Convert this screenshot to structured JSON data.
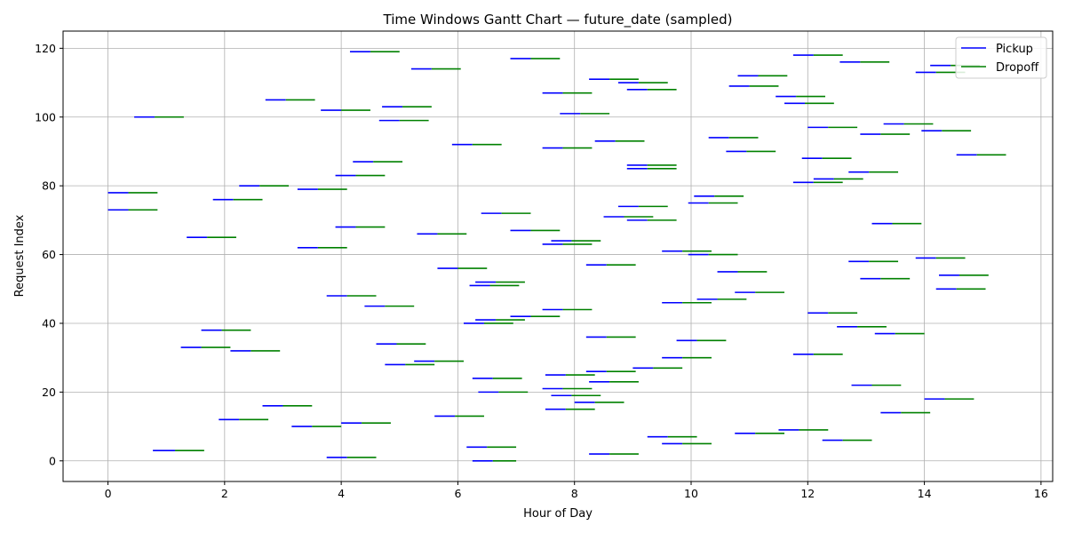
{
  "chart_data": {
    "type": "gantt",
    "title": "Time Windows Gantt Chart — future_date (sampled)",
    "xlabel": "Hour of Day",
    "ylabel": "Request Index",
    "xlim": [
      -0.77,
      16.2
    ],
    "ylim": [
      -6,
      125
    ],
    "x_ticks": [
      0,
      2,
      4,
      6,
      8,
      10,
      12,
      14,
      16
    ],
    "y_ticks": [
      0,
      20,
      40,
      60,
      80,
      100,
      120
    ],
    "grid": true,
    "legend_position": "top-right",
    "series": [
      {
        "name": "Pickup",
        "color": "#0000ff"
      },
      {
        "name": "Dropoff",
        "color": "#008000"
      }
    ],
    "requests": [
      [
        0,
        6.25,
        6.6,
        7.0
      ],
      [
        1,
        3.75,
        4.1,
        4.6
      ],
      [
        2,
        8.25,
        8.6,
        9.1
      ],
      [
        3,
        0.77,
        1.15,
        1.65
      ],
      [
        4,
        6.15,
        6.5,
        7.0
      ],
      [
        5,
        9.5,
        9.85,
        10.35
      ],
      [
        6,
        12.25,
        12.6,
        13.1
      ],
      [
        7,
        9.25,
        9.6,
        10.1
      ],
      [
        8,
        10.75,
        11.1,
        11.6
      ],
      [
        9,
        11.5,
        11.85,
        12.35
      ],
      [
        10,
        3.15,
        3.5,
        4.0
      ],
      [
        11,
        4.0,
        4.35,
        4.85
      ],
      [
        12,
        1.9,
        2.25,
        2.75
      ],
      [
        13,
        5.6,
        5.95,
        6.45
      ],
      [
        14,
        13.25,
        13.6,
        14.1
      ],
      [
        15,
        7.5,
        7.85,
        8.35
      ],
      [
        16,
        2.65,
        3.0,
        3.5
      ],
      [
        17,
        8.0,
        8.35,
        8.85
      ],
      [
        18,
        14.0,
        14.35,
        14.85
      ],
      [
        19,
        7.6,
        7.95,
        8.45
      ],
      [
        20,
        6.35,
        6.7,
        7.2
      ],
      [
        21,
        7.45,
        7.8,
        8.3
      ],
      [
        22,
        12.75,
        13.1,
        13.6
      ],
      [
        23,
        8.25,
        8.6,
        9.1
      ],
      [
        24,
        6.25,
        6.6,
        7.1
      ],
      [
        25,
        7.5,
        7.85,
        8.35
      ],
      [
        26,
        8.2,
        8.55,
        9.05
      ],
      [
        27,
        9.0,
        9.35,
        9.85
      ],
      [
        28,
        4.75,
        5.1,
        5.6
      ],
      [
        29,
        5.25,
        5.6,
        6.1
      ],
      [
        30,
        9.5,
        9.85,
        10.35
      ],
      [
        31,
        11.75,
        12.1,
        12.6
      ],
      [
        32,
        2.1,
        2.45,
        2.95
      ],
      [
        33,
        1.25,
        1.6,
        2.1
      ],
      [
        34,
        4.6,
        4.95,
        5.45
      ],
      [
        35,
        9.75,
        10.1,
        10.6
      ],
      [
        36,
        8.2,
        8.55,
        9.05
      ],
      [
        37,
        13.15,
        13.5,
        14.0
      ],
      [
        38,
        1.6,
        1.95,
        2.45
      ],
      [
        39,
        12.5,
        12.85,
        13.35
      ],
      [
        40,
        6.1,
        6.45,
        6.95
      ],
      [
        41,
        6.3,
        6.65,
        7.15
      ],
      [
        42,
        6.9,
        7.25,
        7.75
      ],
      [
        43,
        12.0,
        12.35,
        12.85
      ],
      [
        44,
        7.45,
        7.8,
        8.3
      ],
      [
        45,
        4.4,
        4.75,
        5.25
      ],
      [
        46,
        9.5,
        9.85,
        10.35
      ],
      [
        47,
        10.1,
        10.45,
        10.95
      ],
      [
        48,
        3.75,
        4.1,
        4.6
      ],
      [
        49,
        10.75,
        11.1,
        11.6
      ],
      [
        50,
        14.2,
        14.55,
        15.05
      ],
      [
        51,
        6.2,
        6.55,
        7.05
      ],
      [
        52,
        6.3,
        6.65,
        7.15
      ],
      [
        53,
        12.9,
        13.25,
        13.75
      ],
      [
        54,
        14.25,
        14.6,
        15.1
      ],
      [
        55,
        10.45,
        10.8,
        11.3
      ],
      [
        56,
        5.65,
        6.0,
        6.5
      ],
      [
        57,
        8.2,
        8.55,
        9.05
      ],
      [
        58,
        12.7,
        13.05,
        13.55
      ],
      [
        59,
        13.85,
        14.2,
        14.7
      ],
      [
        60,
        9.95,
        10.3,
        10.8
      ],
      [
        61,
        9.5,
        9.85,
        10.35
      ],
      [
        62,
        3.25,
        3.6,
        4.1
      ],
      [
        63,
        7.45,
        7.8,
        8.3
      ],
      [
        64,
        7.6,
        7.95,
        8.45
      ],
      [
        65,
        1.35,
        1.7,
        2.2
      ],
      [
        66,
        5.3,
        5.65,
        6.15
      ],
      [
        67,
        6.9,
        7.25,
        7.75
      ],
      [
        68,
        3.9,
        4.25,
        4.75
      ],
      [
        69,
        13.1,
        13.45,
        13.95
      ],
      [
        70,
        8.9,
        9.25,
        9.75
      ],
      [
        71,
        8.5,
        8.85,
        9.35
      ],
      [
        72,
        6.4,
        6.75,
        7.25
      ],
      [
        73,
        0.0,
        0.35,
        0.85
      ],
      [
        74,
        8.75,
        9.1,
        9.6
      ],
      [
        75,
        9.95,
        10.3,
        10.8
      ],
      [
        76,
        1.8,
        2.15,
        2.65
      ],
      [
        77,
        10.05,
        10.4,
        10.9
      ],
      [
        78,
        0.0,
        0.35,
        0.85
      ],
      [
        79,
        3.25,
        3.6,
        4.1
      ],
      [
        80,
        2.25,
        2.6,
        3.1
      ],
      [
        81,
        11.75,
        12.1,
        12.6
      ],
      [
        82,
        12.1,
        12.45,
        12.95
      ],
      [
        83,
        3.9,
        4.25,
        4.75
      ],
      [
        84,
        12.7,
        13.05,
        13.55
      ],
      [
        85,
        8.9,
        9.25,
        9.75
      ],
      [
        86,
        8.9,
        9.25,
        9.75
      ],
      [
        87,
        4.2,
        4.55,
        5.05
      ],
      [
        88,
        11.9,
        12.25,
        12.75
      ],
      [
        89,
        14.55,
        14.9,
        15.4
      ],
      [
        90,
        10.6,
        10.95,
        11.45
      ],
      [
        91,
        7.45,
        7.8,
        8.3
      ],
      [
        92,
        5.9,
        6.25,
        6.75
      ],
      [
        93,
        8.35,
        8.7,
        9.2
      ],
      [
        94,
        10.3,
        10.65,
        11.15
      ],
      [
        95,
        12.9,
        13.25,
        13.75
      ],
      [
        96,
        13.95,
        14.3,
        14.8
      ],
      [
        97,
        12.0,
        12.35,
        12.85
      ],
      [
        98,
        13.3,
        13.65,
        14.15
      ],
      [
        99,
        4.65,
        5.0,
        5.5
      ],
      [
        100,
        0.45,
        0.8,
        1.3
      ],
      [
        101,
        7.75,
        8.1,
        8.6
      ],
      [
        102,
        3.65,
        4.0,
        4.5
      ],
      [
        103,
        4.7,
        5.05,
        5.55
      ],
      [
        104,
        11.6,
        11.95,
        12.45
      ],
      [
        105,
        2.7,
        3.05,
        3.55
      ],
      [
        106,
        11.45,
        11.8,
        12.3
      ],
      [
        107,
        7.45,
        7.8,
        8.3
      ],
      [
        108,
        8.9,
        9.25,
        9.75
      ],
      [
        109,
        10.65,
        11.0,
        11.5
      ],
      [
        110,
        8.75,
        9.1,
        9.6
      ],
      [
        111,
        8.25,
        8.6,
        9.1
      ],
      [
        112,
        10.8,
        11.15,
        11.65
      ],
      [
        113,
        13.85,
        14.2,
        14.7
      ],
      [
        114,
        5.2,
        5.55,
        6.05
      ],
      [
        115,
        14.1,
        14.45,
        14.95
      ],
      [
        116,
        12.55,
        12.9,
        13.4
      ],
      [
        117,
        6.9,
        7.25,
        7.75
      ],
      [
        118,
        11.75,
        12.1,
        12.6
      ],
      [
        119,
        4.15,
        4.5,
        5.0
      ]
    ]
  }
}
